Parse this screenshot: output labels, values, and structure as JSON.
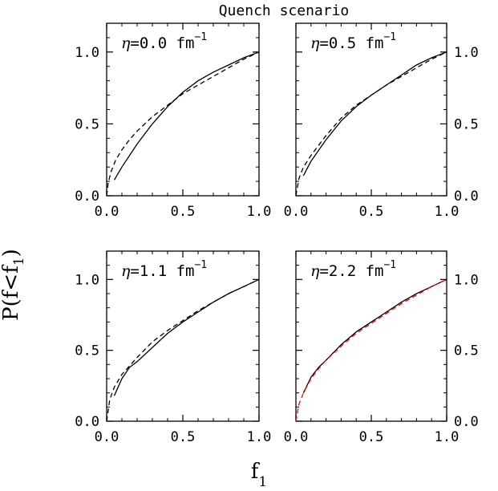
{
  "figure": {
    "title": "Quench scenario",
    "ylabel_main": "P(f<f",
    "ylabel_sub": "1",
    "ylabel_close": ")",
    "xlabel_main": "f",
    "xlabel_sub": "1"
  },
  "chart_data": [
    {
      "type": "line",
      "panel": "top-left",
      "annotation": {
        "eta": "η",
        "value": "=0.0",
        "unit": "fm",
        "exp": "−1"
      },
      "xlim": [
        0,
        1
      ],
      "ylim": [
        0,
        1.2
      ],
      "xticks": [
        "0.0",
        "0.5",
        "1.0"
      ],
      "yticks": [
        "0.0",
        "0.5",
        "1.0"
      ],
      "tick_side": "left",
      "series": [
        {
          "style": "solid",
          "color": "#000000",
          "x": [
            0.05,
            0.1,
            0.2,
            0.3,
            0.4,
            0.5,
            0.6,
            0.7,
            0.8,
            0.9,
            1.0
          ],
          "y": [
            0.11,
            0.2,
            0.36,
            0.5,
            0.62,
            0.72,
            0.8,
            0.86,
            0.91,
            0.96,
            1.0
          ]
        },
        {
          "style": "dashed",
          "color": "#000000",
          "x": [
            0.0,
            0.01,
            0.03,
            0.06,
            0.1,
            0.15,
            0.2,
            0.3,
            0.4,
            0.5,
            0.6,
            0.7,
            0.8,
            0.9,
            1.0
          ],
          "y": [
            0.0,
            0.09,
            0.17,
            0.25,
            0.32,
            0.39,
            0.45,
            0.55,
            0.63,
            0.71,
            0.77,
            0.83,
            0.89,
            0.95,
            1.0
          ]
        }
      ]
    },
    {
      "type": "line",
      "panel": "top-right",
      "annotation": {
        "eta": "η",
        "value": "=0.5",
        "unit": "fm",
        "exp": "−1"
      },
      "xlim": [
        0,
        1
      ],
      "ylim": [
        0,
        1.2
      ],
      "xticks": [
        "0.0",
        "0.5",
        "1.0"
      ],
      "yticks": [
        "0.0",
        "0.5",
        "1.0"
      ],
      "tick_side": "right",
      "series": [
        {
          "style": "solid",
          "color": "#000000",
          "x": [
            0.05,
            0.1,
            0.2,
            0.3,
            0.4,
            0.5,
            0.6,
            0.7,
            0.8,
            0.9,
            1.0
          ],
          "y": [
            0.14,
            0.24,
            0.39,
            0.52,
            0.62,
            0.7,
            0.77,
            0.84,
            0.91,
            0.96,
            1.0
          ]
        },
        {
          "style": "dashed",
          "color": "#000000",
          "x": [
            0.0,
            0.02,
            0.05,
            0.1,
            0.2,
            0.3,
            0.4,
            0.5,
            0.6,
            0.7,
            0.8,
            0.9,
            1.0
          ],
          "y": [
            0.0,
            0.12,
            0.2,
            0.28,
            0.42,
            0.54,
            0.63,
            0.7,
            0.77,
            0.83,
            0.89,
            0.95,
            1.0
          ]
        }
      ]
    },
    {
      "type": "line",
      "panel": "bottom-left",
      "annotation": {
        "eta": "η",
        "value": "=1.1",
        "unit": "fm",
        "exp": "−1"
      },
      "xlim": [
        0,
        1
      ],
      "ylim": [
        0,
        1.2
      ],
      "xticks": [
        "0.0",
        "0.5",
        "1.0"
      ],
      "yticks": [
        "0.0",
        "0.5",
        "1.0"
      ],
      "tick_side": "left",
      "series": [
        {
          "style": "solid",
          "color": "#000000",
          "x": [
            0.05,
            0.1,
            0.15,
            0.2,
            0.3,
            0.4,
            0.5,
            0.6,
            0.7,
            0.8,
            0.9,
            1.0
          ],
          "y": [
            0.18,
            0.3,
            0.38,
            0.42,
            0.52,
            0.62,
            0.7,
            0.77,
            0.84,
            0.9,
            0.95,
            1.0
          ]
        },
        {
          "style": "dashed",
          "color": "#000000",
          "x": [
            0.0,
            0.02,
            0.05,
            0.1,
            0.2,
            0.3,
            0.4,
            0.5,
            0.6,
            0.7,
            0.8,
            0.9,
            1.0
          ],
          "y": [
            0.0,
            0.15,
            0.24,
            0.33,
            0.45,
            0.56,
            0.64,
            0.71,
            0.78,
            0.84,
            0.9,
            0.95,
            1.0
          ]
        }
      ]
    },
    {
      "type": "line",
      "panel": "bottom-right",
      "annotation": {
        "eta": "η",
        "value": "=2.2",
        "unit": "fm",
        "exp": "−1"
      },
      "xlim": [
        0,
        1
      ],
      "ylim": [
        0,
        1.2
      ],
      "xticks": [
        "0.0",
        "0.5",
        "1.0"
      ],
      "yticks": [
        "0.0",
        "0.5",
        "1.0"
      ],
      "tick_side": "right",
      "series": [
        {
          "style": "solid",
          "color": "#000000",
          "x": [
            0.05,
            0.1,
            0.15,
            0.2,
            0.3,
            0.4,
            0.5,
            0.6,
            0.7,
            0.8,
            0.9,
            1.0
          ],
          "y": [
            0.2,
            0.31,
            0.38,
            0.43,
            0.54,
            0.63,
            0.7,
            0.77,
            0.84,
            0.9,
            0.95,
            1.0
          ]
        },
        {
          "style": "dashed",
          "color": "#ff0000",
          "x": [
            0.0,
            0.02,
            0.05,
            0.1,
            0.15,
            0.2,
            0.3,
            0.4,
            0.5,
            0.6,
            0.7,
            0.8,
            0.9,
            1.0
          ],
          "y": [
            0.0,
            0.12,
            0.2,
            0.3,
            0.37,
            0.43,
            0.53,
            0.62,
            0.69,
            0.76,
            0.83,
            0.89,
            0.95,
            1.0
          ]
        }
      ]
    }
  ]
}
